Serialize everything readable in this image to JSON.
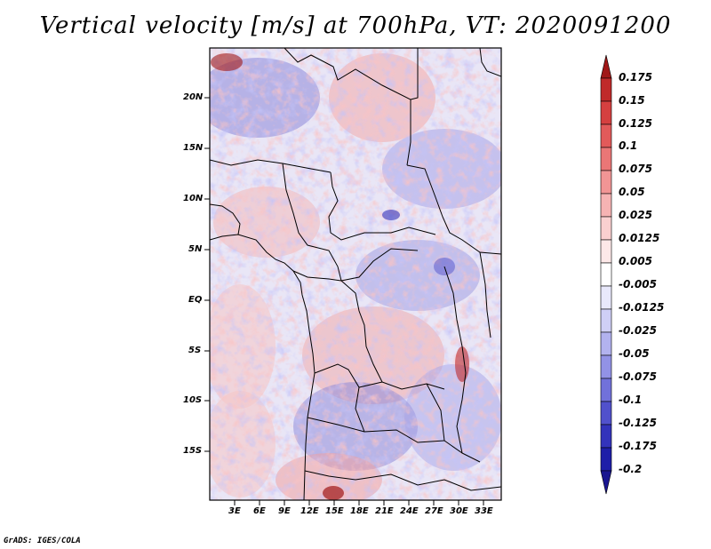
{
  "title": "Vertical velocity [m/s] at 700hPa, VT: 2020091200",
  "credit": "GrADS: IGES/COLA",
  "map": {
    "variable": "Vertical velocity",
    "units": "m/s",
    "level": "700hPa",
    "valid_time": "2020091200",
    "lat_labels": [
      "20N",
      "15N",
      "10N",
      "5N",
      "EQ",
      "5S",
      "10S",
      "15S"
    ],
    "lon_labels": [
      "3E",
      "6E",
      "9E",
      "12E",
      "15E",
      "18E",
      "21E",
      "24E",
      "27E",
      "30E",
      "33E"
    ]
  },
  "colorbar": {
    "labels": [
      "0.175",
      "0.15",
      "0.125",
      "0.1",
      "0.075",
      "0.05",
      "0.025",
      "0.0125",
      "0.005",
      "-0.005",
      "-0.0125",
      "-0.025",
      "-0.05",
      "-0.075",
      "-0.1",
      "-0.125",
      "-0.175",
      "-0.2"
    ],
    "colors": [
      "#a01818",
      "#c02a2a",
      "#d54040",
      "#e25a5a",
      "#ea7676",
      "#f19595",
      "#f6b3b3",
      "#fad0d0",
      "#fde8e8",
      "#ffffff",
      "#e8e8fb",
      "#cfcff6",
      "#b2b2ef",
      "#9292e6",
      "#7171da",
      "#5151cc",
      "#3333bb",
      "#1e1ea8",
      "#1a1690"
    ]
  }
}
